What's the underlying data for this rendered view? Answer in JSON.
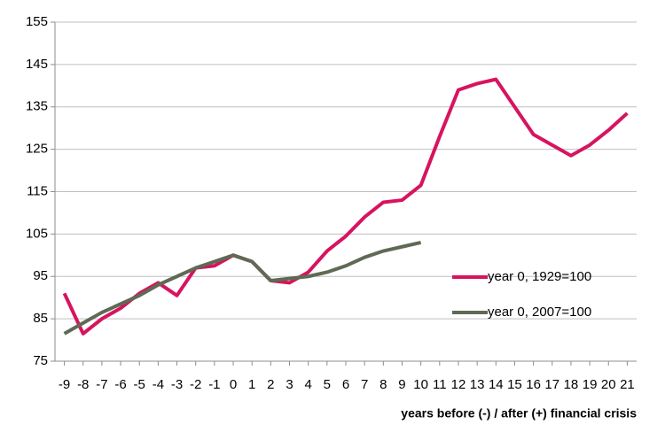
{
  "chart_data": {
    "type": "line",
    "x_label": "years before (-) / after (+) financial crisis",
    "x": [
      -9,
      -8,
      -7,
      -6,
      -5,
      -4,
      -3,
      -2,
      -1,
      0,
      1,
      2,
      3,
      4,
      5,
      6,
      7,
      8,
      9,
      10,
      11,
      12,
      13,
      14,
      15,
      16,
      17,
      18,
      19,
      20,
      21
    ],
    "series": [
      {
        "name": "year 0, 1929=100",
        "color": "#d6145f",
        "values": [
          91,
          81.5,
          85,
          87.5,
          91,
          93.5,
          90.5,
          97,
          97.5,
          100,
          98.5,
          94,
          93.5,
          96,
          101,
          104.5,
          109,
          112.5,
          113,
          116.5,
          128,
          139,
          140.5,
          141.5,
          135,
          128.5,
          126,
          123.5,
          126,
          129.5,
          133.5
        ]
      },
      {
        "name": "year 0, 2007=100",
        "color": "#5f6a55",
        "values": [
          81.5,
          84,
          86.5,
          88.5,
          90.5,
          93,
          95,
          97,
          98.5,
          100,
          98.5,
          94,
          94.5,
          95,
          96,
          97.5,
          99.5,
          101,
          102,
          103,
          null,
          null,
          null,
          null,
          null,
          null,
          null,
          null,
          null,
          null,
          null
        ]
      }
    ],
    "xlim": [
      -9.5,
      21.5
    ],
    "xticks": [
      -9,
      -8,
      -7,
      -6,
      -5,
      -4,
      -3,
      -2,
      -1,
      0,
      1,
      2,
      3,
      4,
      5,
      6,
      7,
      8,
      9,
      10,
      11,
      12,
      13,
      14,
      15,
      16,
      17,
      18,
      19,
      20,
      21
    ],
    "ylim": [
      75,
      155
    ],
    "yticks": [
      75,
      85,
      95,
      105,
      115,
      125,
      135,
      145,
      155
    ],
    "grid": true,
    "legend": "right"
  }
}
